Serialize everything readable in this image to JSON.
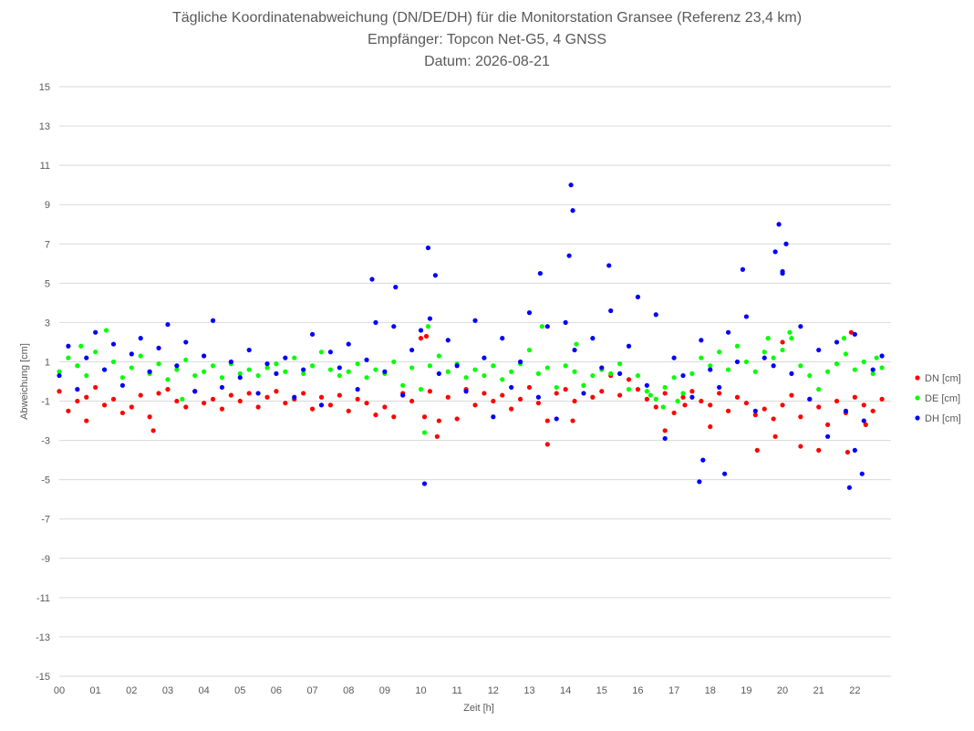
{
  "chart_data": {
    "type": "scatter",
    "title": "Tägliche Koordinatenabweichung (DN/DE/DH) für die Monitorstation Gransee (Referenz 23,4 km)",
    "subtitle": "Empfänger: Topcon Net-G5, 4 GNSS",
    "date_line": "Datum: 2026-08-21",
    "xlabel": "Zeit [h]",
    "ylabel": "Abweichung [cm]",
    "xlim": [
      0,
      23
    ],
    "ylim": [
      -15,
      15
    ],
    "yticks": [
      15,
      13,
      11,
      9,
      7,
      5,
      3,
      1,
      -1,
      -3,
      -5,
      -7,
      -9,
      -11,
      -13,
      -15
    ],
    "xtick_labels": [
      "00",
      "01",
      "02",
      "03",
      "04",
      "05",
      "06",
      "07",
      "08",
      "09",
      "10",
      "11",
      "12",
      "13",
      "14",
      "15",
      "16",
      "17",
      "18",
      "19",
      "20",
      "21",
      "22"
    ],
    "grid": "horizontal",
    "legend_position": "right",
    "series": [
      {
        "name": "DN [cm]",
        "color": "#ff0000",
        "x": [
          0.0,
          0.25,
          0.5,
          0.75,
          1.0,
          1.25,
          1.5,
          1.75,
          2.0,
          2.25,
          2.5,
          2.75,
          3.0,
          3.25,
          3.5,
          3.75,
          4.0,
          4.25,
          4.5,
          4.75,
          5.0,
          5.25,
          5.5,
          5.75,
          6.0,
          6.25,
          6.5,
          6.75,
          7.0,
          7.25,
          7.5,
          7.75,
          8.0,
          8.25,
          8.5,
          8.75,
          9.0,
          9.25,
          9.5,
          9.75,
          10.0,
          10.25,
          10.5,
          10.75,
          11.0,
          11.25,
          11.5,
          11.75,
          12.0,
          12.25,
          12.5,
          12.75,
          13.0,
          13.25,
          13.5,
          13.75,
          14.0,
          14.25,
          14.5,
          14.75,
          15.0,
          15.25,
          15.5,
          15.75,
          16.0,
          16.25,
          16.5,
          16.75,
          17.0,
          17.25,
          17.5,
          17.75,
          18.0,
          18.25,
          18.5,
          18.75,
          19.0,
          19.25,
          19.5,
          19.75,
          20.0,
          20.25,
          20.5,
          20.75,
          21.0,
          21.25,
          21.5,
          21.75,
          22.0,
          22.25,
          22.5,
          22.75
        ],
        "values": [
          -0.5,
          -1.5,
          -1.0,
          -0.8,
          -0.3,
          -1.2,
          -0.9,
          -1.6,
          -1.3,
          -0.7,
          -1.8,
          -0.6,
          -0.4,
          -1.0,
          -1.3,
          -0.5,
          -1.1,
          -0.9,
          -1.4,
          -0.7,
          -1.0,
          -0.6,
          -1.3,
          -0.8,
          -0.5,
          -1.1,
          -0.9,
          -0.6,
          -1.4,
          -0.8,
          -1.2,
          -0.7,
          -1.5,
          -0.9,
          -1.1,
          -1.7,
          -1.3,
          -1.8,
          -0.6,
          -1.0,
          2.2,
          -0.5,
          -2.0,
          -0.8,
          -1.9,
          -0.4,
          -1.2,
          -0.6,
          -1.0,
          -0.7,
          -1.4,
          -0.9,
          -0.3,
          -1.1,
          -2.0,
          -0.6,
          -0.4,
          -1.0,
          -0.2,
          -0.8,
          -0.5,
          0.3,
          -0.7,
          0.1,
          -0.4,
          -0.9,
          -1.3,
          -0.6,
          -1.6,
          -0.8,
          -0.5,
          -1.0,
          -1.2,
          -0.6,
          -1.5,
          -0.8,
          -1.1,
          -1.7,
          -1.4,
          -1.9,
          -1.2,
          -0.7,
          -1.8,
          -0.9,
          -1.3,
          -2.2,
          -1.0,
          -1.6,
          -0.8,
          -1.2,
          -1.5,
          -0.9
        ],
        "extra_points": [
          [
            0.75,
            -2.0
          ],
          [
            2.6,
            -2.5
          ],
          [
            10.1,
            -1.8
          ],
          [
            10.45,
            -2.8
          ],
          [
            13.5,
            -3.2
          ],
          [
            16.75,
            -2.5
          ],
          [
            17.3,
            -1.2
          ],
          [
            19.3,
            -3.5
          ],
          [
            20.5,
            -3.3
          ],
          [
            21.0,
            -3.5
          ],
          [
            21.8,
            -3.6
          ],
          [
            21.9,
            2.5
          ],
          [
            10.15,
            2.3
          ],
          [
            14.2,
            -2.0
          ],
          [
            18.0,
            -2.3
          ],
          [
            19.8,
            -2.8
          ],
          [
            20.0,
            2.0
          ],
          [
            22.3,
            -2.2
          ]
        ]
      },
      {
        "name": "DE [cm]",
        "color": "#00ff00",
        "x": [
          0.0,
          0.25,
          0.5,
          0.75,
          1.0,
          1.25,
          1.5,
          1.75,
          2.0,
          2.25,
          2.5,
          2.75,
          3.0,
          3.25,
          3.5,
          3.75,
          4.0,
          4.25,
          4.5,
          4.75,
          5.0,
          5.25,
          5.5,
          5.75,
          6.0,
          6.25,
          6.5,
          6.75,
          7.0,
          7.25,
          7.5,
          7.75,
          8.0,
          8.25,
          8.5,
          8.75,
          9.0,
          9.25,
          9.5,
          9.75,
          10.0,
          10.25,
          10.5,
          10.75,
          11.0,
          11.25,
          11.5,
          11.75,
          12.0,
          12.25,
          12.5,
          12.75,
          13.0,
          13.25,
          13.5,
          13.75,
          14.0,
          14.25,
          14.5,
          14.75,
          15.0,
          15.25,
          15.5,
          15.75,
          16.0,
          16.25,
          16.5,
          16.75,
          17.0,
          17.25,
          17.5,
          17.75,
          18.0,
          18.25,
          18.5,
          18.75,
          19.0,
          19.25,
          19.5,
          19.75,
          20.0,
          20.25,
          20.5,
          20.75,
          21.0,
          21.25,
          21.5,
          21.75,
          22.0,
          22.25,
          22.5,
          22.75
        ],
        "values": [
          0.5,
          1.2,
          0.8,
          0.3,
          1.5,
          0.6,
          1.0,
          0.2,
          0.7,
          1.3,
          0.4,
          0.9,
          0.1,
          0.6,
          1.1,
          0.3,
          0.5,
          0.8,
          0.2,
          0.9,
          0.4,
          0.6,
          0.3,
          0.7,
          0.9,
          0.5,
          1.2,
          0.4,
          0.8,
          1.5,
          0.6,
          0.3,
          0.5,
          0.9,
          0.2,
          0.6,
          0.4,
          1.0,
          -0.2,
          0.7,
          -0.4,
          0.8,
          1.3,
          0.5,
          0.9,
          0.2,
          0.6,
          0.3,
          0.8,
          0.1,
          0.5,
          0.9,
          1.6,
          0.4,
          0.7,
          -0.3,
          0.8,
          0.5,
          -0.2,
          0.3,
          0.6,
          0.4,
          0.9,
          -0.4,
          0.3,
          -0.5,
          -0.9,
          -0.3,
          0.2,
          -0.6,
          0.4,
          1.2,
          0.8,
          1.5,
          0.6,
          1.8,
          1.0,
          0.5,
          1.5,
          1.2,
          1.6,
          2.2,
          0.8,
          0.3,
          -0.4,
          0.5,
          0.9,
          1.4,
          0.6,
          1.0,
          0.4,
          0.7
        ],
        "extra_points": [
          [
            0.6,
            1.8
          ],
          [
            1.3,
            2.6
          ],
          [
            3.4,
            -0.9
          ],
          [
            10.1,
            -2.6
          ],
          [
            10.2,
            2.8
          ],
          [
            13.35,
            2.8
          ],
          [
            14.3,
            1.9
          ],
          [
            16.35,
            -0.7
          ],
          [
            17.1,
            -1.0
          ],
          [
            19.6,
            2.2
          ],
          [
            20.2,
            2.5
          ],
          [
            21.7,
            2.2
          ],
          [
            22.6,
            1.2
          ],
          [
            16.7,
            -1.3
          ]
        ]
      },
      {
        "name": "DH [cm]",
        "color": "#0000ff",
        "x": [
          0.0,
          0.25,
          0.5,
          0.75,
          1.0,
          1.25,
          1.5,
          1.75,
          2.0,
          2.25,
          2.5,
          2.75,
          3.0,
          3.25,
          3.5,
          3.75,
          4.0,
          4.25,
          4.5,
          4.75,
          5.0,
          5.25,
          5.5,
          5.75,
          6.0,
          6.25,
          6.5,
          6.75,
          7.0,
          7.25,
          7.5,
          7.75,
          8.0,
          8.25,
          8.5,
          8.75,
          9.0,
          9.25,
          9.5,
          9.75,
          10.0,
          10.25,
          10.5,
          10.75,
          11.0,
          11.25,
          11.5,
          11.75,
          12.0,
          12.25,
          12.5,
          12.75,
          13.0,
          13.25,
          13.5,
          13.75,
          14.0,
          14.25,
          14.5,
          14.75,
          15.0,
          15.25,
          15.5,
          15.75,
          16.0,
          16.25,
          16.5,
          16.75,
          17.0,
          17.25,
          17.5,
          17.75,
          18.0,
          18.25,
          18.5,
          18.75,
          19.0,
          19.25,
          19.5,
          19.75,
          20.0,
          20.25,
          20.5,
          20.75,
          21.0,
          21.25,
          21.5,
          21.75,
          22.0,
          22.25,
          22.5,
          22.75
        ],
        "values": [
          0.3,
          1.8,
          -0.4,
          1.2,
          2.5,
          0.6,
          1.9,
          -0.2,
          1.4,
          2.2,
          0.5,
          1.7,
          2.9,
          0.8,
          2.0,
          -0.5,
          1.3,
          3.1,
          -0.3,
          1.0,
          0.2,
          1.6,
          -0.6,
          0.9,
          0.4,
          1.2,
          -0.8,
          0.6,
          2.4,
          -1.2,
          1.5,
          0.7,
          1.9,
          -0.4,
          1.1,
          3.0,
          0.5,
          2.8,
          -0.7,
          1.6,
          2.6,
          3.2,
          0.4,
          2.1,
          0.8,
          -0.5,
          3.1,
          1.2,
          -1.8,
          2.2,
          -0.3,
          1.0,
          3.5,
          -0.8,
          2.8,
          -1.9,
          3.0,
          1.6,
          -0.6,
          2.2,
          0.7,
          3.6,
          0.4,
          1.8,
          4.3,
          -0.2,
          3.4,
          -2.9,
          1.2,
          0.3,
          -0.8,
          2.1,
          0.6,
          -0.3,
          2.5,
          1.0,
          3.3,
          -1.5,
          1.2,
          0.8,
          5.5,
          0.4,
          2.8,
          -0.9,
          1.6,
          -2.8,
          2.0,
          -1.5,
          2.4,
          -2.0,
          0.6,
          1.3
        ],
        "extra_points": [
          [
            10.1,
            -5.2
          ],
          [
            10.2,
            6.8
          ],
          [
            10.4,
            5.4
          ],
          [
            14.15,
            10.0
          ],
          [
            14.2,
            8.7
          ],
          [
            14.1,
            6.4
          ],
          [
            15.2,
            5.9
          ],
          [
            18.4,
            -4.7
          ],
          [
            17.7,
            -5.1
          ],
          [
            17.8,
            -4.0
          ],
          [
            19.8,
            6.6
          ],
          [
            19.9,
            8.0
          ],
          [
            20.1,
            7.0
          ],
          [
            21.85,
            -5.4
          ],
          [
            22.0,
            -3.5
          ],
          [
            22.2,
            -4.7
          ],
          [
            8.65,
            5.2
          ],
          [
            9.3,
            4.8
          ],
          [
            13.3,
            5.5
          ],
          [
            18.9,
            5.7
          ],
          [
            20.0,
            5.6
          ]
        ]
      }
    ]
  }
}
